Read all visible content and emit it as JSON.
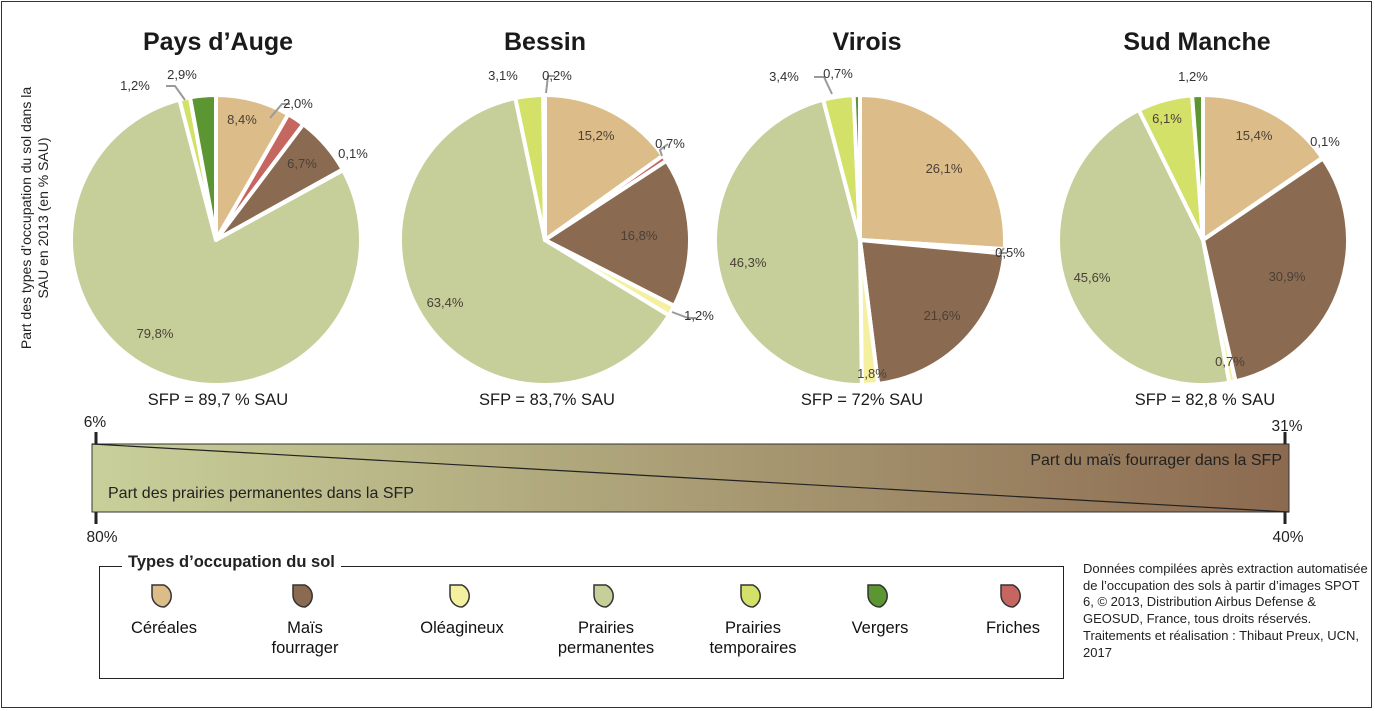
{
  "y_axis_label": "Part des types d’occupation du sol dans la SAU en 2013 (en % SAU)",
  "colors": {
    "cereales": "#dcbd8a",
    "mais_fourrager": "#8b6a52",
    "oleagineux": "#f5f0a0",
    "prairies_permanentes": "#c6ce9a",
    "prairies_temporaires": "#d3e168",
    "vergers": "#5b9632",
    "friches": "#c66660"
  },
  "chart_data": [
    {
      "type": "pie",
      "title": "Pays d’Auge",
      "footer": "SFP = 89,7 % SAU",
      "slices": [
        {
          "category": "Céréales",
          "value": 8.4,
          "label": "8,4%"
        },
        {
          "category": "Friches",
          "value": 2.0,
          "label": "2,0%"
        },
        {
          "category": "Maïs fourrager",
          "value": 6.7,
          "label": "6,7%"
        },
        {
          "category": "Oléagineux",
          "value": 0.1,
          "label": "0,1%"
        },
        {
          "category": "Prairies permanentes",
          "value": 79.8,
          "label": "79,8%"
        },
        {
          "category": "Prairies temporaires",
          "value": 1.2,
          "label": "1,2%"
        },
        {
          "category": "Vergers",
          "value": 2.9,
          "label": "2,9%"
        }
      ]
    },
    {
      "type": "pie",
      "title": "Bessin",
      "footer": "SFP = 83,7% SAU",
      "slices": [
        {
          "category": "Céréales",
          "value": 15.2,
          "label": "15,2%"
        },
        {
          "category": "Friches",
          "value": 0.7,
          "label": "0,7%"
        },
        {
          "category": "Maïs fourrager",
          "value": 16.8,
          "label": "16,8%"
        },
        {
          "category": "Oléagineux",
          "value": 1.2,
          "label": "1,2%"
        },
        {
          "category": "Prairies permanentes",
          "value": 63.4,
          "label": "63,4%"
        },
        {
          "category": "Prairies temporaires",
          "value": 3.1,
          "label": "3,1%"
        },
        {
          "category": "Vergers",
          "value": 0.2,
          "label": "0,2%"
        }
      ]
    },
    {
      "type": "pie",
      "title": "Virois",
      "footer": "SFP = 72% SAU",
      "slices": [
        {
          "category": "Céréales",
          "value": 26.1,
          "label": "26,1%"
        },
        {
          "category": "Friches",
          "value": 0.5,
          "label": "0,5%"
        },
        {
          "category": "Maïs fourrager",
          "value": 21.6,
          "label": "21,6%"
        },
        {
          "category": "Oléagineux",
          "value": 1.8,
          "label": "1,8%"
        },
        {
          "category": "Prairies permanentes",
          "value": 46.3,
          "label": "46,3%"
        },
        {
          "category": "Prairies temporaires",
          "value": 3.4,
          "label": "3,4%"
        },
        {
          "category": "Vergers",
          "value": 0.7,
          "label": "0,7%"
        }
      ]
    },
    {
      "type": "pie",
      "title": "Sud Manche",
      "footer": "SFP = 82,8 % SAU",
      "slices": [
        {
          "category": "Céréales",
          "value": 15.4,
          "label": "15,4%"
        },
        {
          "category": "Friches",
          "value": 0.1,
          "label": "0,1%"
        },
        {
          "category": "Maïs fourrager",
          "value": 30.9,
          "label": "30,9%"
        },
        {
          "category": "Oléagineux",
          "value": 0.7,
          "label": "0,7%"
        },
        {
          "category": "Prairies permanentes",
          "value": 45.6,
          "label": "45,6%"
        },
        {
          "category": "Prairies temporaires",
          "value": 6.1,
          "label": "6,1%"
        },
        {
          "category": "Vergers",
          "value": 1.2,
          "label": "1,2%"
        }
      ]
    }
  ],
  "gradient_scale": {
    "top_left": "6%",
    "top_right": "31%",
    "bottom_left": "80%",
    "bottom_right": "40%",
    "label_mais": "Part du maïs fourrager dans la SFP",
    "label_prairies": "Part des prairies permanentes dans la SFP"
  },
  "legend": {
    "title": "Types d’occupation du sol",
    "items": [
      {
        "label": "Céréales",
        "color_key": "cereales"
      },
      {
        "label": "Maïs\nfourrager",
        "color_key": "mais_fourrager"
      },
      {
        "label": "Oléagineux",
        "color_key": "oleagineux"
      },
      {
        "label": "Prairies\npermanentes",
        "color_key": "prairies_permanentes"
      },
      {
        "label": "Prairies\ntemporaires",
        "color_key": "prairies_temporaires"
      },
      {
        "label": "Vergers",
        "color_key": "vergers"
      },
      {
        "label": "Friches",
        "color_key": "friches"
      }
    ]
  },
  "source_text": "Données compilées après extraction automatisée de l’occupation des sols à partir d’images SPOT 6, © 2013, Distribution Airbus Defense & GEOSUD, France, tous droits réservés. Traitements et réalisation : Thibaut Preux, UCN, 2017"
}
